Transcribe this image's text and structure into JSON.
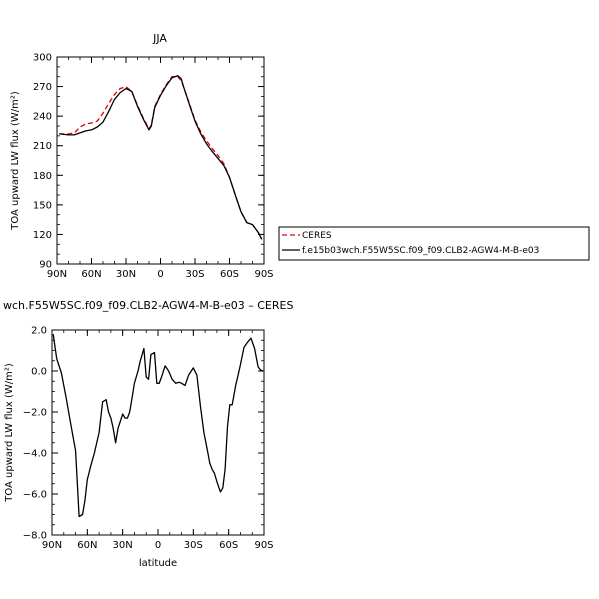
{
  "chart_data": [
    {
      "type": "line",
      "title": "JJA",
      "xlabel": "",
      "ylabel": "TOA upward LW flux (W/m²)",
      "xlim": [
        90,
        -90
      ],
      "ylim": [
        90,
        300
      ],
      "xticks": [
        90,
        60,
        30,
        0,
        -30,
        -60,
        -90
      ],
      "xtick_labels": [
        "90N",
        "60N",
        "30N",
        "0",
        "30S",
        "60S",
        "90S"
      ],
      "yticks": [
        90,
        120,
        150,
        180,
        210,
        240,
        270,
        300
      ],
      "ytick_labels": [
        "90",
        "120",
        "150",
        "180",
        "210",
        "240",
        "270",
        "300"
      ],
      "legend_position": "right",
      "series": [
        {
          "name": "CERES",
          "color": "#dd0000",
          "style": "dashed",
          "x": [
            88,
            80,
            75,
            70,
            65,
            60,
            55,
            50,
            45,
            40,
            35,
            30,
            25,
            20,
            15,
            10,
            8,
            5,
            0,
            -5,
            -10,
            -15,
            -18,
            -20,
            -25,
            -30,
            -35,
            -40,
            -45,
            -50,
            -55,
            -60,
            -65,
            -70,
            -75,
            -80,
            -85,
            -88
          ],
          "y": [
            222,
            222,
            223,
            229,
            232,
            233,
            235,
            243,
            253,
            262,
            268,
            270,
            265,
            251,
            238,
            227,
            231,
            250,
            262,
            272,
            280,
            280,
            276,
            270,
            253,
            236,
            224,
            215,
            207,
            200,
            192,
            178,
            160,
            143,
            132,
            130,
            122,
            116
          ]
        },
        {
          "name": "f.e15b03wch.F55W5SC.f09_f09.CLB2-AGW4-M-B-e03",
          "color": "#000000",
          "style": "solid",
          "x": [
            88,
            80,
            75,
            70,
            65,
            60,
            55,
            50,
            45,
            40,
            35,
            30,
            25,
            20,
            15,
            10,
            8,
            5,
            0,
            -5,
            -10,
            -15,
            -18,
            -20,
            -25,
            -30,
            -35,
            -40,
            -45,
            -50,
            -55,
            -60,
            -65,
            -70,
            -75,
            -80,
            -85,
            -88
          ],
          "y": [
            222,
            221,
            221,
            223,
            225,
            226,
            229,
            234,
            245,
            257,
            264,
            268,
            265,
            250,
            237,
            226,
            230,
            249,
            261,
            271,
            279,
            281,
            278,
            270,
            252,
            235,
            222,
            212,
            204,
            197,
            190,
            178,
            160,
            143,
            132,
            130,
            122,
            115
          ]
        }
      ]
    },
    {
      "type": "line",
      "title": "wch.F55W5SC.f09_f09.CLB2-AGW4-M-B-e03 – CERES",
      "xlabel": "latitude",
      "ylabel": "TOA upward LW flux (W/m²)",
      "xlim": [
        90,
        -90
      ],
      "ylim": [
        -8,
        2
      ],
      "xticks": [
        90,
        60,
        30,
        0,
        -30,
        -60,
        -90
      ],
      "xtick_labels": [
        "90N",
        "60N",
        "30N",
        "0",
        "30S",
        "60S",
        "90S"
      ],
      "yticks": [
        -8,
        -6,
        -4,
        -2,
        0,
        2
      ],
      "ytick_labels": [
        "−8.0",
        "−6.0",
        "−4.0",
        "−2.0",
        "0.0",
        "2.0"
      ],
      "series": [
        {
          "color": "#000000",
          "style": "solid",
          "x": [
            89,
            86,
            82,
            78,
            74,
            70,
            67,
            64,
            62,
            60,
            57,
            54,
            50,
            47,
            44,
            42,
            40,
            38,
            36,
            34,
            30,
            28,
            26,
            24,
            22,
            20,
            17,
            15,
            12,
            10,
            8,
            6,
            3,
            1,
            -1,
            -3,
            -6,
            -9,
            -12,
            -15,
            -18,
            -20,
            -23,
            -26,
            -30,
            -33,
            -36,
            -39,
            -42,
            -44,
            -46,
            -48,
            -50,
            -53,
            -55,
            -57,
            -59,
            -61,
            -63,
            -66,
            -68,
            -70,
            -73,
            -76,
            -79,
            -82,
            -85,
            -87,
            -89
          ],
          "y": [
            1.8,
            0.6,
            -0.1,
            -1.3,
            -2.6,
            -3.9,
            -7.1,
            -7.0,
            -6.3,
            -5.3,
            -4.6,
            -4.0,
            -3.0,
            -1.5,
            -1.4,
            -2.0,
            -2.3,
            -2.8,
            -3.5,
            -2.8,
            -2.1,
            -2.3,
            -2.3,
            -2.0,
            -1.3,
            -0.6,
            0.0,
            0.5,
            1.1,
            -0.3,
            -0.4,
            0.8,
            0.9,
            -0.6,
            -0.6,
            -0.3,
            0.25,
            0.0,
            -0.4,
            -0.6,
            -0.55,
            -0.6,
            -0.7,
            -0.2,
            0.15,
            -0.2,
            -1.7,
            -3.0,
            -3.9,
            -4.5,
            -4.8,
            -5.0,
            -5.4,
            -5.9,
            -5.7,
            -4.8,
            -2.7,
            -1.65,
            -1.65,
            -0.7,
            -0.2,
            0.3,
            1.15,
            1.4,
            1.6,
            1.1,
            0.2,
            0.05,
            0.0
          ]
        }
      ]
    }
  ]
}
